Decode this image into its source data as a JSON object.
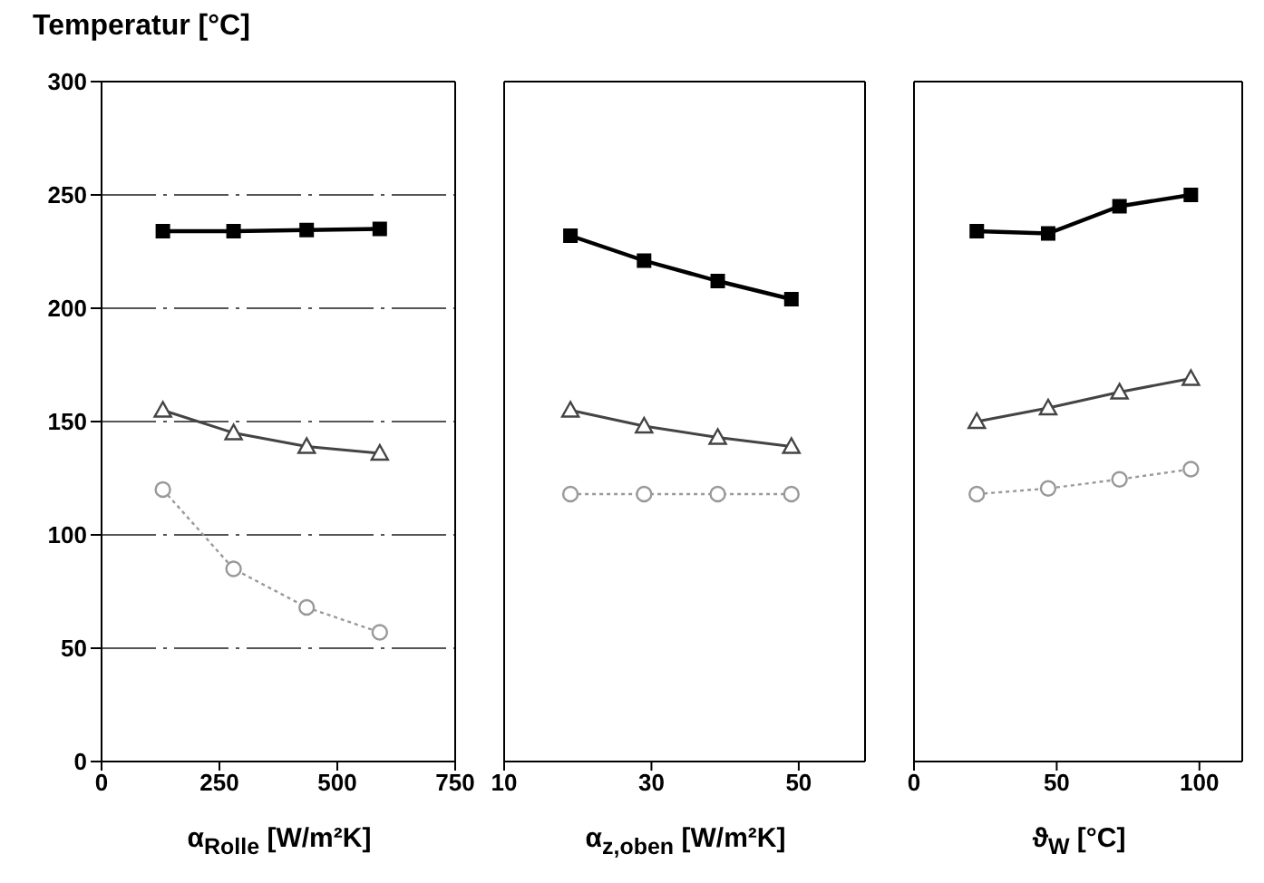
{
  "chart_data": [
    {
      "type": "line",
      "title": "Temperatur [°C]",
      "xlabel": "α$_{Rolle}$ [W/m²K]",
      "x": [
        130,
        280,
        435,
        590
      ],
      "xlim": [
        0,
        750
      ],
      "xticks": [
        0,
        250,
        500,
        750
      ],
      "ylim": [
        0,
        300
      ],
      "yticks": [
        0,
        50,
        100,
        150,
        200,
        250,
        300
      ],
      "grid": "y",
      "series": [
        {
          "color": "#000000",
          "marker": "square",
          "line_style": "solid",
          "values": [
            234,
            234,
            234.5,
            235
          ]
        },
        {
          "color": "#444444",
          "marker": "triangle",
          "line_style": "solid",
          "values": [
            155,
            145,
            139,
            136
          ]
        },
        {
          "color": "#999999",
          "marker": "circle",
          "line_style": "dotted",
          "values": [
            120,
            85,
            68,
            57
          ]
        }
      ]
    },
    {
      "type": "line",
      "xlabel": "α$_{z,oben}$ [W/m²K]",
      "x": [
        19,
        29,
        39,
        49
      ],
      "xlim": [
        10,
        59
      ],
      "xticks": [
        10,
        30,
        50
      ],
      "ylim": [
        0,
        300
      ],
      "yticks": [
        0,
        50,
        100,
        150,
        200,
        250,
        300
      ],
      "tick_labels": "x",
      "grid": "y",
      "series": [
        {
          "color": "#000000",
          "marker": "square",
          "line_style": "solid",
          "values": [
            232,
            221,
            212,
            204
          ]
        },
        {
          "color": "#444444",
          "marker": "triangle",
          "line_style": "solid",
          "values": [
            155,
            148,
            143,
            139
          ]
        },
        {
          "color": "#999999",
          "marker": "circle",
          "line_style": "dotted",
          "values": [
            118,
            118,
            118,
            118
          ]
        }
      ]
    },
    {
      "type": "line",
      "xlabel": "ϑ$_{W}$ [°C]",
      "x": [
        22,
        47,
        72,
        97
      ],
      "xlim": [
        0,
        115
      ],
      "xticks": [
        0,
        50,
        100
      ],
      "ylim": [
        0,
        300
      ],
      "yticks": [
        0,
        50,
        100,
        150,
        200,
        250,
        300
      ],
      "tick_labels": "x",
      "grid": "y",
      "series": [
        {
          "color": "#000000",
          "marker": "square",
          "line_style": "solid",
          "values": [
            234,
            233,
            245,
            250
          ]
        },
        {
          "color": "#444444",
          "marker": "triangle",
          "line_style": "solid",
          "values": [
            150,
            156,
            163,
            169
          ]
        },
        {
          "color": "#999999",
          "marker": "circle",
          "line_style": "dotted",
          "values": [
            118,
            120.5,
            124.5,
            129
          ]
        }
      ]
    }
  ]
}
